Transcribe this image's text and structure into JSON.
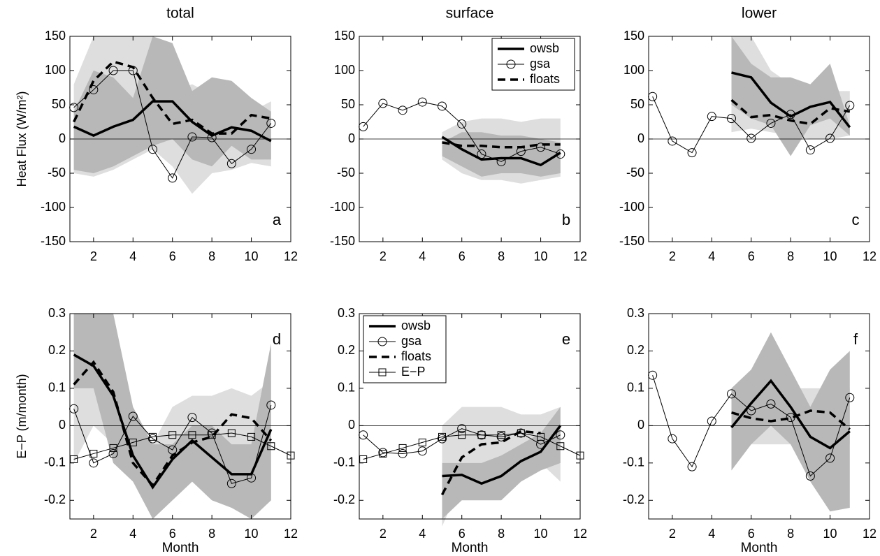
{
  "chart_data": [
    {
      "type": "line",
      "title": "total",
      "ylabel": "Heat Flux (W/m²)",
      "panel_label": "a",
      "panel_label_corner": "bottom-right",
      "xlim": [
        0.8,
        12
      ],
      "xticks": [
        2,
        4,
        6,
        8,
        10,
        12
      ],
      "ylim": [
        -150,
        150
      ],
      "yticks": [
        -150,
        -100,
        -50,
        0,
        50,
        100,
        150
      ],
      "zero_line": true,
      "bands": [
        {
          "color": "#dedede",
          "x": [
            1,
            2,
            3,
            4,
            5,
            6,
            7,
            8,
            9,
            10,
            11
          ],
          "lower": [
            -50,
            -55,
            -45,
            -30,
            -15,
            -40,
            -80,
            -50,
            -45,
            -35,
            -40
          ],
          "upper": [
            80,
            150,
            150,
            150,
            150,
            70,
            80,
            65,
            55,
            40,
            55
          ]
        },
        {
          "color": "#b8b8b8",
          "x": [
            1,
            2,
            3,
            4,
            5,
            6,
            7,
            8,
            9,
            10,
            11
          ],
          "lower": [
            -45,
            -50,
            -40,
            -25,
            -10,
            0,
            -30,
            -40,
            -10,
            -30,
            -30
          ],
          "upper": [
            40,
            100,
            90,
            60,
            150,
            140,
            70,
            90,
            85,
            60,
            40
          ]
        }
      ],
      "series": [
        {
          "name": "owsb",
          "color": "#000000",
          "style": "bold",
          "x": [
            1,
            2,
            3,
            4,
            5,
            6,
            7,
            8,
            9,
            10,
            11
          ],
          "values": [
            18,
            5,
            18,
            28,
            55,
            55,
            25,
            5,
            17,
            12,
            -3
          ]
        },
        {
          "name": "gsa",
          "color": "#000000",
          "style": "thin",
          "marker": "circle",
          "x": [
            1,
            2,
            3,
            4,
            5,
            6,
            7,
            8,
            9,
            10,
            11
          ],
          "values": [
            46,
            72,
            100,
            100,
            -15,
            -57,
            3,
            2,
            -36,
            -15,
            23
          ]
        },
        {
          "name": "floats",
          "color": "#000000",
          "style": "dashed",
          "x": [
            1,
            2,
            3,
            4,
            5,
            6,
            7,
            8,
            9,
            10,
            11
          ],
          "values": [
            25,
            85,
            113,
            105,
            60,
            22,
            28,
            8,
            8,
            35,
            30
          ]
        }
      ]
    },
    {
      "type": "line",
      "title": "surface",
      "panel_label": "b",
      "panel_label_corner": "bottom-right",
      "legend": "upper right",
      "xlim": [
        0.8,
        12
      ],
      "xticks": [
        2,
        4,
        6,
        8,
        10,
        12
      ],
      "ylim": [
        -150,
        150
      ],
      "yticks": [
        -150,
        -100,
        -50,
        0,
        50,
        100,
        150
      ],
      "zero_line": true,
      "bands": [
        {
          "color": "#dedede",
          "x": [
            5,
            6,
            7,
            8,
            9,
            10,
            11
          ],
          "lower": [
            -30,
            -50,
            -60,
            -60,
            -65,
            -60,
            -55
          ],
          "upper": [
            10,
            25,
            30,
            30,
            25,
            30,
            30
          ]
        },
        {
          "color": "#b8b8b8",
          "x": [
            5,
            6,
            7,
            8,
            9,
            10,
            11
          ],
          "lower": [
            -25,
            -40,
            -55,
            -50,
            -50,
            -55,
            -50
          ],
          "upper": [
            -5,
            10,
            10,
            5,
            5,
            0,
            -5
          ]
        }
      ],
      "series": [
        {
          "name": "owsb",
          "color": "#000000",
          "style": "bold",
          "x": [
            5,
            6,
            7,
            8,
            9,
            10,
            11
          ],
          "values": [
            3,
            -15,
            -30,
            -28,
            -28,
            -38,
            -20
          ]
        },
        {
          "name": "gsa",
          "color": "#000000",
          "style": "thin",
          "marker": "circle",
          "x": [
            1,
            2,
            3,
            4,
            5,
            6,
            7,
            8,
            9,
            10,
            11
          ],
          "values": [
            18,
            52,
            42,
            54,
            48,
            22,
            -22,
            -33,
            -18,
            -12,
            -22
          ]
        },
        {
          "name": "floats",
          "color": "#000000",
          "style": "dashed",
          "x": [
            5,
            6,
            7,
            8,
            9,
            10,
            11
          ],
          "values": [
            -5,
            -10,
            -10,
            -12,
            -12,
            -8,
            -8
          ]
        }
      ]
    },
    {
      "type": "line",
      "title": "lower",
      "panel_label": "c",
      "panel_label_corner": "bottom-right",
      "xlim": [
        0.8,
        12
      ],
      "xticks": [
        2,
        4,
        6,
        8,
        10,
        12
      ],
      "ylim": [
        -150,
        150
      ],
      "yticks": [
        -150,
        -100,
        -50,
        0,
        50,
        100,
        150
      ],
      "zero_line": true,
      "bands": [
        {
          "color": "#dedede",
          "x": [
            5,
            6,
            7,
            8,
            9,
            10,
            11
          ],
          "lower": [
            10,
            15,
            10,
            5,
            0,
            0,
            5
          ],
          "upper": [
            150,
            150,
            100,
            80,
            60,
            70,
            70
          ]
        },
        {
          "color": "#b8b8b8",
          "x": [
            5,
            6,
            7,
            8,
            9,
            10,
            11
          ],
          "lower": [
            50,
            30,
            20,
            -25,
            20,
            30,
            5
          ],
          "upper": [
            150,
            110,
            90,
            90,
            80,
            110,
            20
          ]
        }
      ],
      "series": [
        {
          "name": "owsb",
          "color": "#000000",
          "style": "bold",
          "x": [
            5,
            6,
            7,
            8,
            9,
            10,
            11
          ],
          "values": [
            97,
            90,
            53,
            33,
            47,
            54,
            17
          ]
        },
        {
          "name": "gsa",
          "color": "#000000",
          "style": "thin",
          "marker": "circle",
          "x": [
            1,
            2,
            3,
            4,
            5,
            6,
            7,
            8,
            9,
            10,
            11
          ],
          "values": [
            62,
            -3,
            -20,
            33,
            30,
            1,
            23,
            36,
            -16,
            1,
            49
          ]
        },
        {
          "name": "floats",
          "color": "#000000",
          "style": "dashed",
          "x": [
            5,
            6,
            7,
            8,
            9,
            10,
            11
          ],
          "values": [
            57,
            32,
            35,
            27,
            22,
            45,
            40
          ]
        }
      ]
    },
    {
      "type": "line",
      "ylabel": "E−P (m/month)",
      "xlabel": "Month",
      "panel_label": "d",
      "panel_label_corner": "top-right",
      "xlim": [
        0.8,
        12
      ],
      "xticks": [
        2,
        4,
        6,
        8,
        10,
        12
      ],
      "ylim": [
        -0.25,
        0.3
      ],
      "yticks": [
        -0.2,
        -0.1,
        0,
        0.1,
        0.2,
        0.3
      ],
      "zero_line": true,
      "bands": [
        {
          "color": "#dedede",
          "x": [
            1,
            2,
            3,
            4,
            5,
            6,
            7,
            8,
            9,
            10,
            11
          ],
          "lower": [
            -0.1,
            0,
            -0.05,
            -0.1,
            -0.25,
            -0.2,
            -0.15,
            -0.2,
            -0.2,
            -0.25,
            -0.2
          ],
          "upper": [
            0.3,
            0.3,
            0.2,
            0,
            -0.05,
            0.05,
            0.08,
            0.08,
            0.1,
            0.08,
            0.12
          ]
        },
        {
          "color": "#b8b8b8",
          "x": [
            1,
            2,
            3,
            4,
            5,
            6,
            7,
            8,
            9,
            10,
            11
          ],
          "lower": [
            0.1,
            0.1,
            -0.1,
            -0.15,
            -0.25,
            -0.2,
            -0.15,
            -0.2,
            -0.22,
            -0.25,
            -0.2
          ],
          "upper": [
            0.3,
            0.3,
            0.3,
            0.05,
            -0.05,
            -0.05,
            0,
            0,
            -0.05,
            -0.05,
            0.22
          ]
        }
      ],
      "series": [
        {
          "name": "owsb",
          "color": "#000000",
          "style": "bold",
          "x": [
            1,
            2,
            3,
            4,
            5,
            6,
            7,
            8,
            9,
            10,
            11
          ],
          "values": [
            0.19,
            0.16,
            0.08,
            -0.08,
            -0.165,
            -0.09,
            -0.04,
            -0.085,
            -0.13,
            -0.13,
            -0.01
          ]
        },
        {
          "name": "gsa",
          "color": "#000000",
          "style": "thin",
          "marker": "circle",
          "x": [
            1,
            2,
            3,
            4,
            5,
            6,
            7,
            8,
            9,
            10,
            11
          ],
          "values": [
            0.045,
            -0.1,
            -0.075,
            0.025,
            -0.035,
            -0.065,
            0.022,
            -0.02,
            -0.155,
            -0.14,
            0.055
          ]
        },
        {
          "name": "floats",
          "color": "#000000",
          "style": "dashed",
          "x": [
            1,
            2,
            3,
            4,
            5,
            6,
            7,
            8,
            9,
            10,
            11
          ],
          "values": [
            0.11,
            0.17,
            0.09,
            -0.1,
            -0.16,
            -0.08,
            -0.045,
            -0.03,
            0.03,
            0.02,
            -0.04
          ]
        },
        {
          "name": "E−P",
          "color": "#000000",
          "style": "thin",
          "marker": "square",
          "x": [
            1,
            2,
            3,
            4,
            5,
            6,
            7,
            8,
            9,
            10,
            11,
            12
          ],
          "values": [
            -0.09,
            -0.075,
            -0.06,
            -0.045,
            -0.03,
            -0.025,
            -0.025,
            -0.025,
            -0.02,
            -0.03,
            -0.055,
            -0.08
          ]
        }
      ]
    },
    {
      "type": "line",
      "xlabel": "Month",
      "panel_label": "e",
      "panel_label_corner": "top-right",
      "legend": "upper left",
      "xlim": [
        0.8,
        12
      ],
      "xticks": [
        2,
        4,
        6,
        8,
        10,
        12
      ],
      "ylim": [
        -0.25,
        0.3
      ],
      "yticks": [
        -0.2,
        -0.1,
        0,
        0.1,
        0.2,
        0.3
      ],
      "zero_line": true,
      "bands": [
        {
          "color": "#dedede",
          "x": [
            5,
            6,
            7,
            8,
            9,
            10,
            11
          ],
          "lower": [
            -0.27,
            -0.15,
            -0.15,
            -0.12,
            -0.1,
            -0.1,
            -0.15
          ],
          "upper": [
            0,
            0.05,
            0.05,
            0.05,
            0.03,
            0.03,
            0.05
          ]
        },
        {
          "color": "#b8b8b8",
          "x": [
            5,
            6,
            7,
            8,
            9,
            10,
            11
          ],
          "lower": [
            -0.25,
            -0.2,
            -0.2,
            -0.2,
            -0.15,
            -0.12,
            -0.1
          ],
          "upper": [
            -0.1,
            -0.1,
            -0.1,
            -0.08,
            -0.05,
            -0.02,
            0.05
          ]
        }
      ],
      "series": [
        {
          "name": "owsb",
          "color": "#000000",
          "style": "bold",
          "x": [
            5,
            6,
            7,
            8,
            9,
            10,
            11
          ],
          "values": [
            -0.135,
            -0.132,
            -0.155,
            -0.135,
            -0.095,
            -0.07,
            0
          ]
        },
        {
          "name": "gsa",
          "color": "#000000",
          "style": "thin",
          "marker": "circle",
          "x": [
            1,
            2,
            3,
            4,
            5,
            6,
            7,
            8,
            9,
            10,
            11
          ],
          "values": [
            -0.025,
            -0.072,
            -0.075,
            -0.068,
            -0.035,
            -0.008,
            -0.025,
            -0.03,
            -0.02,
            -0.05,
            -0.025
          ]
        },
        {
          "name": "floats",
          "color": "#000000",
          "style": "dashed",
          "x": [
            5,
            6,
            7,
            8,
            9,
            10
          ],
          "values": [
            -0.185,
            -0.085,
            -0.05,
            -0.045,
            -0.015,
            -0.02
          ]
        },
        {
          "name": "E−P",
          "color": "#000000",
          "style": "thin",
          "marker": "square",
          "x": [
            1,
            2,
            3,
            4,
            5,
            6,
            7,
            8,
            9,
            10,
            11,
            12
          ],
          "values": [
            -0.09,
            -0.075,
            -0.06,
            -0.045,
            -0.03,
            -0.025,
            -0.025,
            -0.025,
            -0.02,
            -0.03,
            -0.055,
            -0.08
          ]
        }
      ]
    },
    {
      "type": "line",
      "xlabel": "Month",
      "panel_label": "f",
      "panel_label_corner": "top-right",
      "xlim": [
        0.8,
        12
      ],
      "xticks": [
        2,
        4,
        6,
        8,
        10,
        12
      ],
      "ylim": [
        -0.25,
        0.3
      ],
      "yticks": [
        -0.2,
        -0.1,
        0,
        0.1,
        0.2,
        0.3
      ],
      "zero_line": true,
      "bands": [
        {
          "color": "#dedede",
          "x": [
            5,
            6,
            7,
            8,
            9,
            10,
            11
          ],
          "lower": [
            -0.05,
            -0.05,
            -0.05,
            -0.05,
            -0.05,
            -0.05,
            -0.05
          ],
          "upper": [
            0.1,
            0.08,
            0.1,
            0.1,
            0.1,
            0.1,
            0.1
          ]
        },
        {
          "color": "#b8b8b8",
          "x": [
            5,
            6,
            7,
            8,
            9,
            10,
            11
          ],
          "lower": [
            -0.12,
            -0.05,
            0,
            -0.05,
            -0.15,
            -0.23,
            -0.22
          ],
          "upper": [
            0.1,
            0.15,
            0.25,
            0.15,
            0.05,
            0.15,
            0.2
          ]
        }
      ],
      "series": [
        {
          "name": "owsb",
          "color": "#000000",
          "style": "bold",
          "x": [
            5,
            6,
            7,
            8,
            9,
            10,
            11
          ],
          "values": [
            -0.005,
            0.06,
            0.12,
            0.05,
            -0.03,
            -0.06,
            -0.015
          ]
        },
        {
          "name": "gsa",
          "color": "#000000",
          "style": "thin",
          "marker": "circle",
          "x": [
            1,
            2,
            3,
            4,
            5,
            6,
            7,
            8,
            9,
            10,
            11
          ],
          "values": [
            0.135,
            -0.035,
            -0.11,
            0.012,
            0.085,
            0.04,
            0.058,
            0.022,
            -0.135,
            -0.087,
            0.075
          ]
        },
        {
          "name": "floats",
          "color": "#000000",
          "style": "dashed",
          "x": [
            5,
            6,
            7,
            8,
            9,
            10,
            11
          ],
          "values": [
            0.035,
            0.02,
            0.012,
            0.02,
            0.04,
            0.035,
            -0.01
          ]
        }
      ]
    }
  ]
}
